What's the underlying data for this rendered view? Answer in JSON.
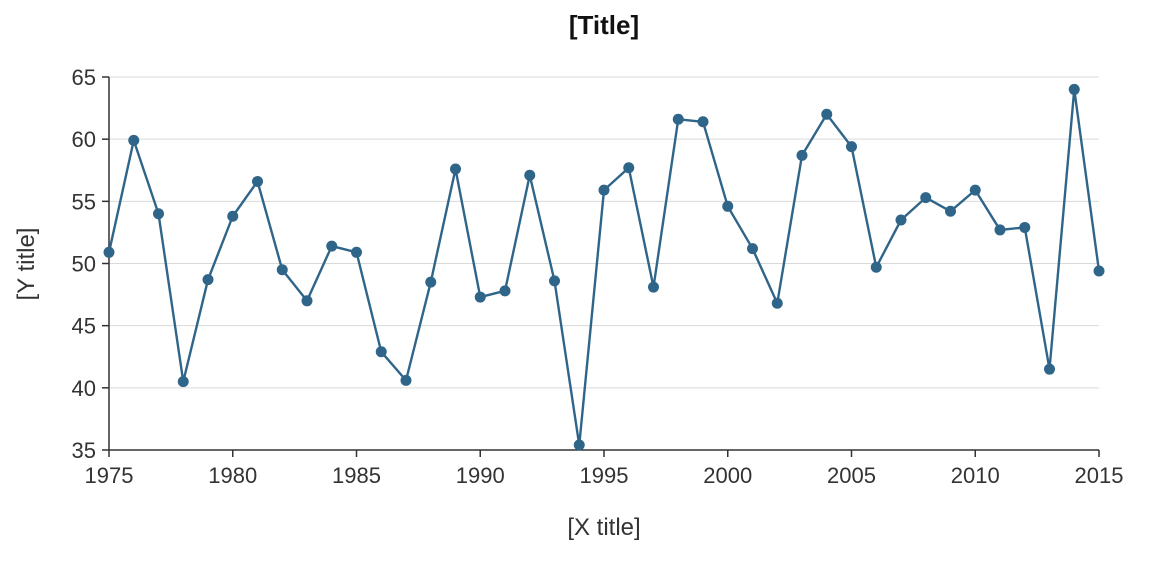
{
  "chart_data": {
    "type": "line",
    "title": "[Title]",
    "xlabel": "[X title]",
    "ylabel": "[Y title]",
    "xlim": [
      1975,
      2015
    ],
    "ylim": [
      35,
      65
    ],
    "xticks": [
      "1975",
      "1980",
      "1985",
      "1990",
      "1995",
      "2000",
      "2005",
      "2010",
      "2015"
    ],
    "yticks": [
      "35",
      "40",
      "45",
      "50",
      "55",
      "60",
      "65"
    ],
    "grid": "horizontal",
    "color": "#2f6589",
    "x": [
      1975,
      1976,
      1977,
      1978,
      1979,
      1980,
      1981,
      1982,
      1983,
      1984,
      1985,
      1986,
      1987,
      1988,
      1989,
      1990,
      1991,
      1992,
      1993,
      1994,
      1995,
      1996,
      1997,
      1998,
      1999,
      2000,
      2001,
      2002,
      2003,
      2004,
      2005,
      2006,
      2007,
      2008,
      2009,
      2010,
      2011,
      2012,
      2013,
      2014,
      2015
    ],
    "series": [
      {
        "values": [
          50.9,
          59.9,
          54.0,
          40.5,
          48.7,
          53.8,
          56.6,
          49.5,
          47.0,
          51.4,
          50.9,
          42.9,
          40.6,
          48.5,
          57.6,
          47.3,
          47.8,
          57.1,
          48.6,
          35.4,
          55.9,
          57.7,
          48.1,
          61.6,
          61.4,
          54.6,
          51.2,
          46.8,
          58.7,
          62.0,
          59.4,
          49.7,
          53.5,
          55.3,
          54.2,
          55.9,
          52.7,
          52.9,
          41.5,
          64.0,
          49.4
        ]
      }
    ]
  }
}
